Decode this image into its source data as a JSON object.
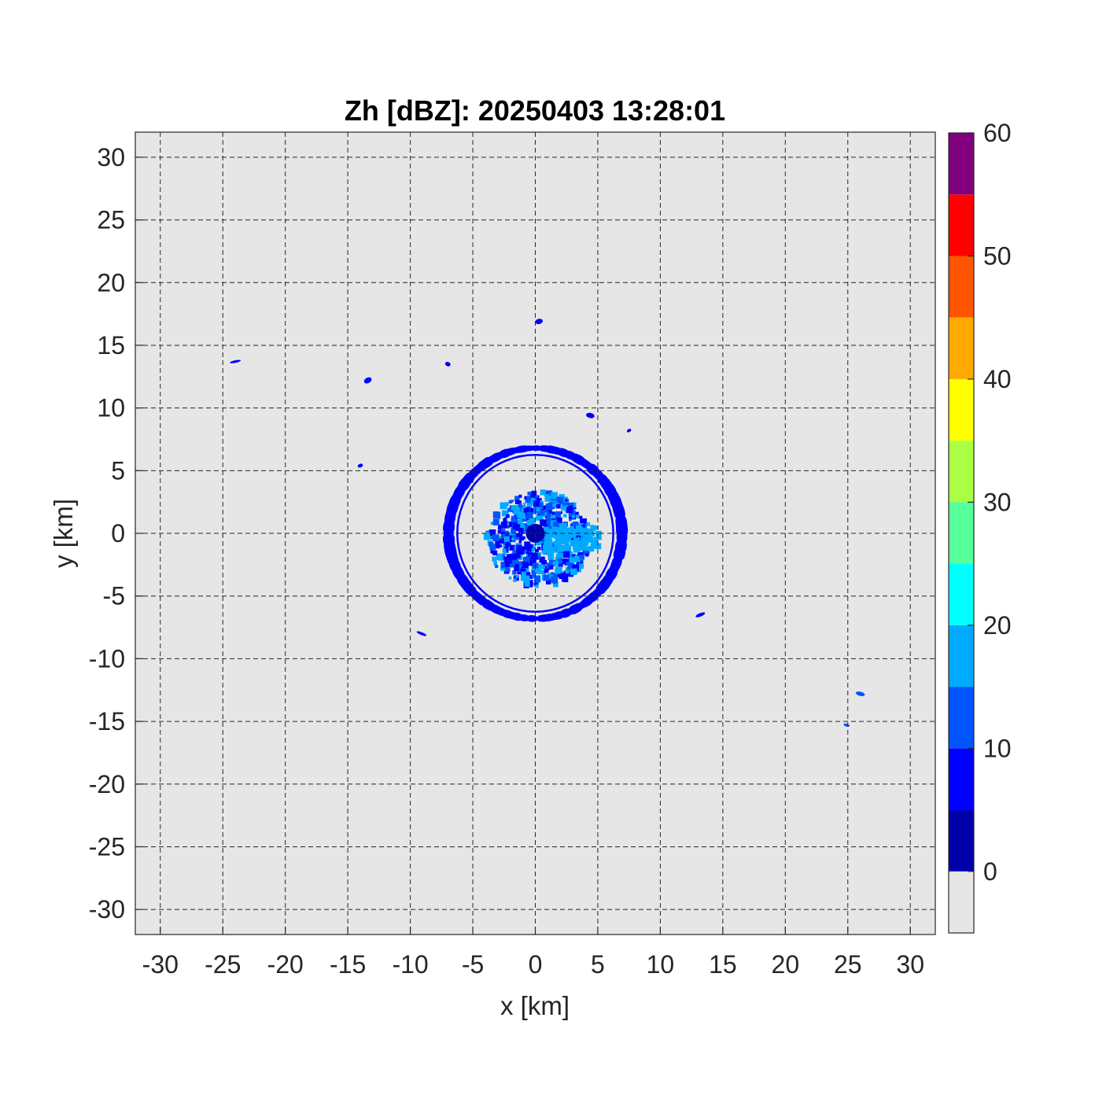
{
  "chart_data": {
    "type": "heatmap",
    "title": "Zh [dBZ]: 20250403 13:28:01",
    "xlabel": "x [km]",
    "ylabel": "y [km]",
    "xlim": [
      -32,
      32
    ],
    "ylim": [
      -32,
      32
    ],
    "xticks": [
      -30,
      -25,
      -20,
      -15,
      -10,
      -5,
      0,
      5,
      10,
      15,
      20,
      25,
      30
    ],
    "yticks": [
      -30,
      -25,
      -20,
      -15,
      -10,
      -5,
      0,
      5,
      10,
      15,
      20,
      25,
      30
    ],
    "grid": true,
    "background_color": "#e6e6e6",
    "colorbar": {
      "range": [
        -5,
        60
      ],
      "tick_values": [
        0,
        10,
        20,
        30,
        40,
        50,
        60
      ],
      "bins": [
        {
          "from": -5,
          "to": 0,
          "color": "#e6e6e6"
        },
        {
          "from": 0,
          "to": 5,
          "color": "#0000aa"
        },
        {
          "from": 5,
          "to": 10,
          "color": "#0000ff"
        },
        {
          "from": 10,
          "to": 15,
          "color": "#0055ff"
        },
        {
          "from": 15,
          "to": 20,
          "color": "#00aaff"
        },
        {
          "from": 20,
          "to": 25,
          "color": "#00ffff"
        },
        {
          "from": 25,
          "to": 30,
          "color": "#55ff99"
        },
        {
          "from": 30,
          "to": 35,
          "color": "#aaff44"
        },
        {
          "from": 35,
          "to": 40,
          "color": "#ffff00"
        },
        {
          "from": 40,
          "to": 45,
          "color": "#ffaa00"
        },
        {
          "from": 45,
          "to": 50,
          "color": "#ff5500"
        },
        {
          "from": 50,
          "to": 55,
          "color": "#ff0000"
        },
        {
          "from": 55,
          "to": 60,
          "color": "#800080"
        }
      ]
    },
    "echoes": {
      "ring": {
        "center": [
          0,
          0
        ],
        "radius_km": 6.8,
        "x_stretch": 1.02,
        "color": "#0000ff",
        "thickness_km": 0.45,
        "dbz": 8
      },
      "core": {
        "center": [
          0.3,
          -0.5
        ],
        "radius_km": 4.0,
        "colors": [
          "#0000ff",
          "#0055ff",
          "#00aaff"
        ],
        "dbz_range": [
          5,
          20
        ]
      },
      "center": {
        "center": [
          0,
          0
        ],
        "color": "#0000aa",
        "dbz": 2
      },
      "blobs": [
        {
          "x": 0.3,
          "y": 16.9,
          "dbz": 8
        },
        {
          "x": -7.0,
          "y": 13.5,
          "dbz": 8
        },
        {
          "x": -13.4,
          "y": 12.2,
          "dbz": 8
        },
        {
          "x": -24.0,
          "y": 13.7,
          "dbz": 8
        },
        {
          "x": -14.0,
          "y": 5.4,
          "dbz": 8
        },
        {
          "x": 4.4,
          "y": 9.4,
          "dbz": 8
        },
        {
          "x": 7.5,
          "y": 8.2,
          "dbz": 8
        },
        {
          "x": -9.1,
          "y": -8.0,
          "dbz": 8
        },
        {
          "x": 13.2,
          "y": -6.5,
          "dbz": 8
        },
        {
          "x": 24.9,
          "y": -15.3,
          "dbz": 12
        },
        {
          "x": 26.0,
          "y": -12.8,
          "dbz": 12
        }
      ]
    }
  }
}
